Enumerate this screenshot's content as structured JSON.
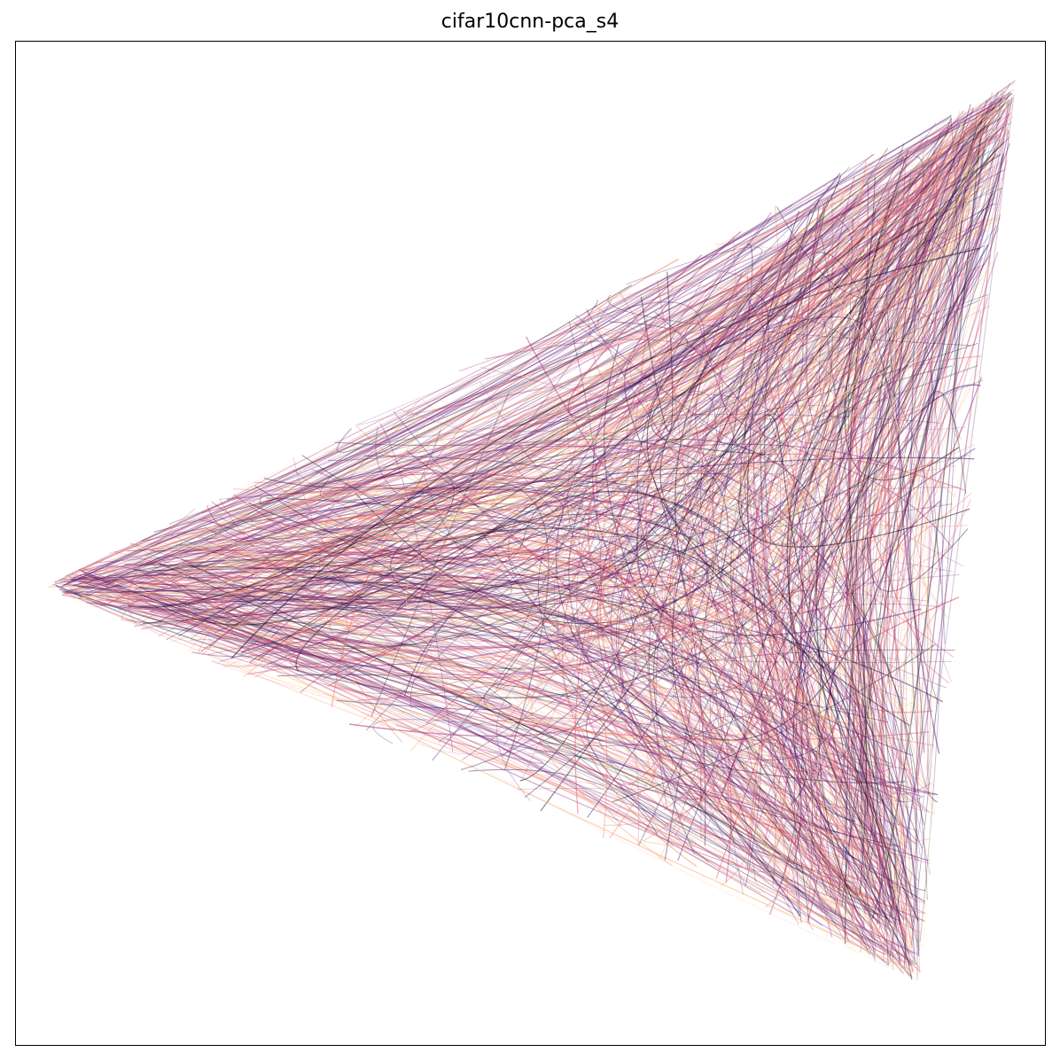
{
  "chart_data": {
    "type": "line",
    "title": "cifar10cnn-pca_s4",
    "xlabel": "",
    "ylabel": "",
    "axes_ticks": "none",
    "grid": false,
    "legend": "none",
    "description_data": {
      "vertices": [
        {
          "name": "left",
          "x": -1.0,
          "y": 0.0
        },
        {
          "name": "top-right",
          "x": 1.0,
          "y": 1.05
        },
        {
          "name": "bottom-right",
          "x": 0.8,
          "y": -0.82
        }
      ],
      "xlim": [
        -1.06,
        1.06
      ],
      "ylim": [
        -0.95,
        1.13
      ],
      "trajectory_count": 900
    },
    "colormap": [
      "#000004",
      "#2c115f",
      "#721f81",
      "#b73779",
      "#f1605d",
      "#feb078",
      "#fcfdbf"
    ]
  }
}
